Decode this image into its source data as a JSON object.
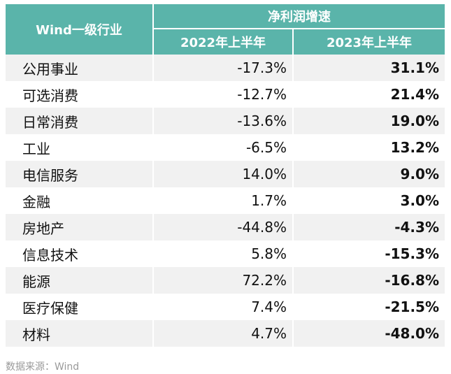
{
  "header": {
    "industry_label": "Wind一级行业",
    "growth_label": "净利润增速",
    "year1_label": "2022年上半年",
    "year2_label": "2023年上半年"
  },
  "rows": [
    {
      "industry": "公用事业",
      "h1_2022": "-17.3%",
      "h1_2023": "31.1%"
    },
    {
      "industry": "可选消费",
      "h1_2022": "-12.7%",
      "h1_2023": "21.4%"
    },
    {
      "industry": "日常消费",
      "h1_2022": "-13.6%",
      "h1_2023": "19.0%"
    },
    {
      "industry": "工业",
      "h1_2022": "-6.5%",
      "h1_2023": "13.2%"
    },
    {
      "industry": "电信服务",
      "h1_2022": "14.0%",
      "h1_2023": "9.0%"
    },
    {
      "industry": "金融",
      "h1_2022": "1.7%",
      "h1_2023": "3.0%"
    },
    {
      "industry": "房地产",
      "h1_2022": "-44.8%",
      "h1_2023": "-4.3%"
    },
    {
      "industry": "信息技术",
      "h1_2022": "5.8%",
      "h1_2023": "-15.3%"
    },
    {
      "industry": "能源",
      "h1_2022": "72.2%",
      "h1_2023": "-16.8%"
    },
    {
      "industry": "医疗保健",
      "h1_2022": "7.4%",
      "h1_2023": "-21.5%"
    },
    {
      "industry": "材料",
      "h1_2022": "4.7%",
      "h1_2023": "-48.0%"
    }
  ],
  "watermark": "Wind",
  "source": "数据来源：Wind",
  "colors": {
    "header_bg": "#5ab4aa",
    "stripe": "#f1f1f1"
  }
}
